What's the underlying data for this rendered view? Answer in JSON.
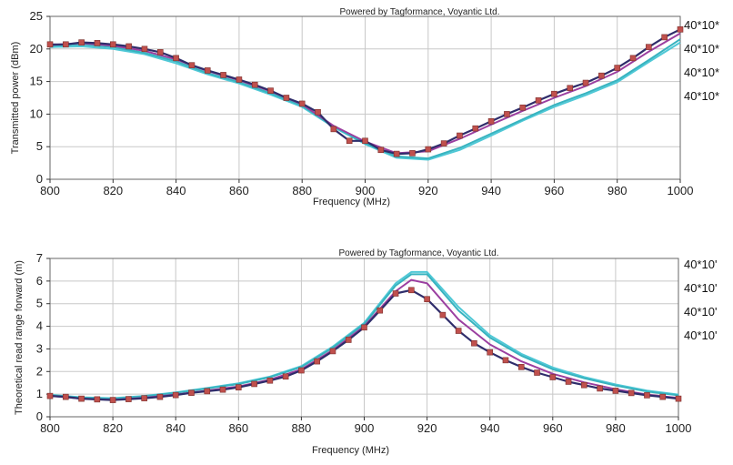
{
  "chart_data": [
    {
      "type": "line",
      "credit": "Powered by Tagformance, Voyantic Ltd.",
      "xlabel": "Frequency (MHz)",
      "ylabel": "Transmitted power (dBm)",
      "xlim": [
        800,
        1000
      ],
      "ylim": [
        0,
        25
      ],
      "xticks": [
        800,
        820,
        840,
        860,
        880,
        900,
        920,
        940,
        960,
        980,
        1000
      ],
      "yticks": [
        0,
        5,
        10,
        15,
        20,
        25
      ],
      "grid": true,
      "legend_entries": [
        "40*10*",
        "40*10*",
        "40*10*",
        "40*10*"
      ],
      "colors": [
        "#2f2d6b",
        "#9b3fa0",
        "#37b3bf",
        "#4fc8d6"
      ],
      "marker_color": "#c0504d",
      "series": [
        {
          "x": [
            800,
            805,
            810,
            815,
            820,
            825,
            830,
            835,
            840,
            845,
            850,
            855,
            860,
            865,
            870,
            875,
            880,
            885,
            890,
            895,
            900,
            905,
            910,
            915,
            920,
            925,
            930,
            935,
            940,
            945,
            950,
            955,
            960,
            965,
            970,
            975,
            980,
            985,
            990,
            995,
            1000
          ],
          "values": [
            20.7,
            20.7,
            21.0,
            20.9,
            20.7,
            20.4,
            20.0,
            19.5,
            18.6,
            17.5,
            16.7,
            16.0,
            15.3,
            14.5,
            13.6,
            12.5,
            11.6,
            10.3,
            7.7,
            5.9,
            5.9,
            4.5,
            3.9,
            4.0,
            4.6,
            5.5,
            6.7,
            7.8,
            8.9,
            10.0,
            11.0,
            12.1,
            13.1,
            14.0,
            14.8,
            15.9,
            17.1,
            18.6,
            20.3,
            21.8,
            23.0
          ]
        },
        {
          "x": [
            800,
            810,
            820,
            830,
            840,
            850,
            860,
            870,
            880,
            890,
            900,
            910,
            920,
            930,
            940,
            950,
            960,
            970,
            980,
            990,
            1000
          ],
          "values": [
            20.6,
            20.9,
            20.5,
            19.7,
            18.4,
            16.6,
            15.2,
            13.5,
            11.5,
            8.2,
            5.8,
            4.0,
            4.3,
            6.2,
            8.4,
            10.5,
            12.5,
            14.3,
            16.5,
            19.6,
            22.4
          ]
        },
        {
          "x": [
            800,
            810,
            820,
            830,
            840,
            850,
            860,
            870,
            880,
            890,
            900,
            910,
            920,
            930,
            940,
            950,
            960,
            970,
            980,
            990,
            1000
          ],
          "values": [
            20.5,
            20.7,
            20.3,
            19.4,
            18.1,
            16.3,
            14.9,
            13.2,
            11.3,
            8.1,
            5.5,
            3.5,
            3.2,
            4.8,
            7.0,
            9.2,
            11.4,
            13.2,
            15.2,
            18.3,
            21.5
          ]
        },
        {
          "x": [
            800,
            810,
            820,
            830,
            840,
            850,
            860,
            870,
            880,
            890,
            900,
            910,
            920,
            930,
            940,
            950,
            960,
            970,
            980,
            990,
            1000
          ],
          "values": [
            20.3,
            20.4,
            20.0,
            19.2,
            17.8,
            16.1,
            14.7,
            13.0,
            11.1,
            8.0,
            5.4,
            3.3,
            3.0,
            4.5,
            6.7,
            9.0,
            11.1,
            12.9,
            14.9,
            18.0,
            21.0
          ]
        }
      ]
    },
    {
      "type": "line",
      "credit": "Powered by Tagformance, Voyantic Ltd.",
      "xlabel": "Frequency (MHz)",
      "ylabel": "Theoretical read range forward (m)",
      "xlim": [
        800,
        1000
      ],
      "ylim": [
        0,
        7
      ],
      "xticks": [
        800,
        820,
        840,
        860,
        880,
        900,
        920,
        940,
        960,
        980,
        1000
      ],
      "yticks": [
        0,
        1,
        2,
        3,
        4,
        5,
        6,
        7
      ],
      "grid": true,
      "legend_entries": [
        "40*10'",
        "40*10'",
        "40*10'",
        "40*10'"
      ],
      "colors": [
        "#2f2d6b",
        "#9b3fa0",
        "#37b3bf",
        "#4fc8d6"
      ],
      "marker_color": "#c0504d",
      "series": [
        {
          "x": [
            800,
            805,
            810,
            815,
            820,
            825,
            830,
            835,
            840,
            845,
            850,
            855,
            860,
            865,
            870,
            875,
            880,
            885,
            890,
            895,
            900,
            905,
            910,
            915,
            920,
            925,
            930,
            935,
            940,
            945,
            950,
            955,
            960,
            965,
            970,
            975,
            980,
            985,
            990,
            995,
            1000
          ],
          "values": [
            0.92,
            0.88,
            0.8,
            0.77,
            0.74,
            0.78,
            0.82,
            0.88,
            0.96,
            1.06,
            1.13,
            1.2,
            1.3,
            1.45,
            1.6,
            1.78,
            2.05,
            2.45,
            2.9,
            3.4,
            3.95,
            4.7,
            5.45,
            5.6,
            5.2,
            4.5,
            3.8,
            3.25,
            2.85,
            2.5,
            2.2,
            1.95,
            1.75,
            1.55,
            1.4,
            1.25,
            1.15,
            1.05,
            0.95,
            0.88,
            0.8
          ]
        },
        {
          "x": [
            800,
            810,
            820,
            830,
            840,
            850,
            860,
            870,
            880,
            890,
            900,
            910,
            915,
            920,
            930,
            940,
            950,
            960,
            970,
            980,
            990,
            1000
          ],
          "values": [
            0.93,
            0.8,
            0.75,
            0.84,
            0.98,
            1.16,
            1.34,
            1.64,
            2.1,
            2.95,
            4.0,
            5.55,
            6.05,
            5.9,
            4.3,
            3.2,
            2.45,
            1.9,
            1.52,
            1.22,
            0.98,
            0.83
          ]
        },
        {
          "x": [
            800,
            810,
            820,
            830,
            840,
            850,
            860,
            870,
            880,
            890,
            900,
            910,
            915,
            920,
            930,
            940,
            950,
            960,
            970,
            980,
            990,
            1000
          ],
          "values": [
            0.95,
            0.84,
            0.8,
            0.9,
            1.06,
            1.25,
            1.45,
            1.75,
            2.2,
            3.05,
            4.1,
            5.8,
            6.3,
            6.3,
            4.7,
            3.5,
            2.7,
            2.1,
            1.7,
            1.38,
            1.12,
            0.95
          ]
        },
        {
          "x": [
            800,
            810,
            820,
            830,
            840,
            850,
            860,
            870,
            880,
            890,
            900,
            910,
            915,
            920,
            930,
            940,
            950,
            960,
            970,
            980,
            990,
            1000
          ],
          "values": [
            0.97,
            0.86,
            0.82,
            0.92,
            1.08,
            1.27,
            1.48,
            1.78,
            2.24,
            3.1,
            4.15,
            5.9,
            6.4,
            6.4,
            4.85,
            3.6,
            2.78,
            2.18,
            1.76,
            1.43,
            1.16,
            0.98
          ]
        }
      ]
    }
  ]
}
